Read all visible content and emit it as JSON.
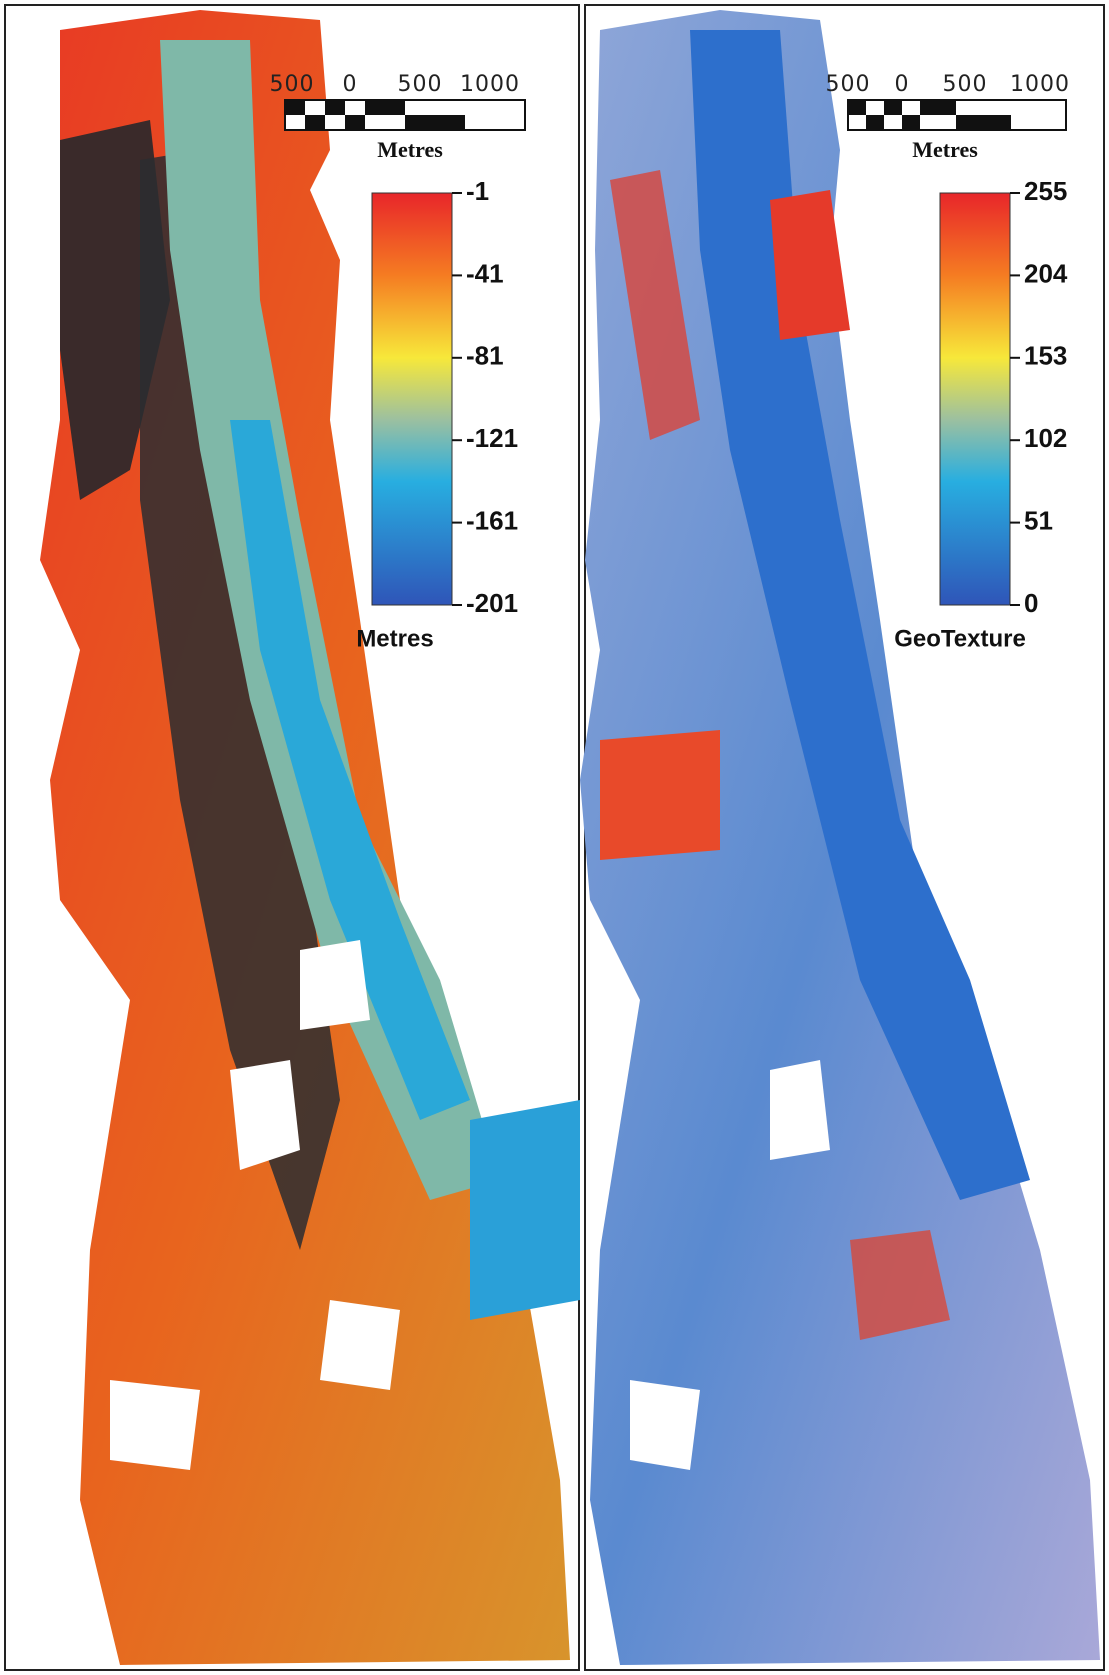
{
  "panels": [
    {
      "scale_bar": {
        "labels": [
          "500",
          "0",
          "500",
          "1000"
        ],
        "unit": "Metres"
      },
      "colorbar": {
        "ticks": [
          -1,
          -41,
          -81,
          -121,
          -161,
          -201
        ],
        "label": "Metres"
      }
    },
    {
      "scale_bar": {
        "labels": [
          "500",
          "0",
          "500",
          "1000"
        ],
        "unit": "Metres"
      },
      "colorbar": {
        "ticks": [
          255,
          204,
          153,
          102,
          51,
          0
        ],
        "label": "GeoTexture"
      }
    }
  ]
}
